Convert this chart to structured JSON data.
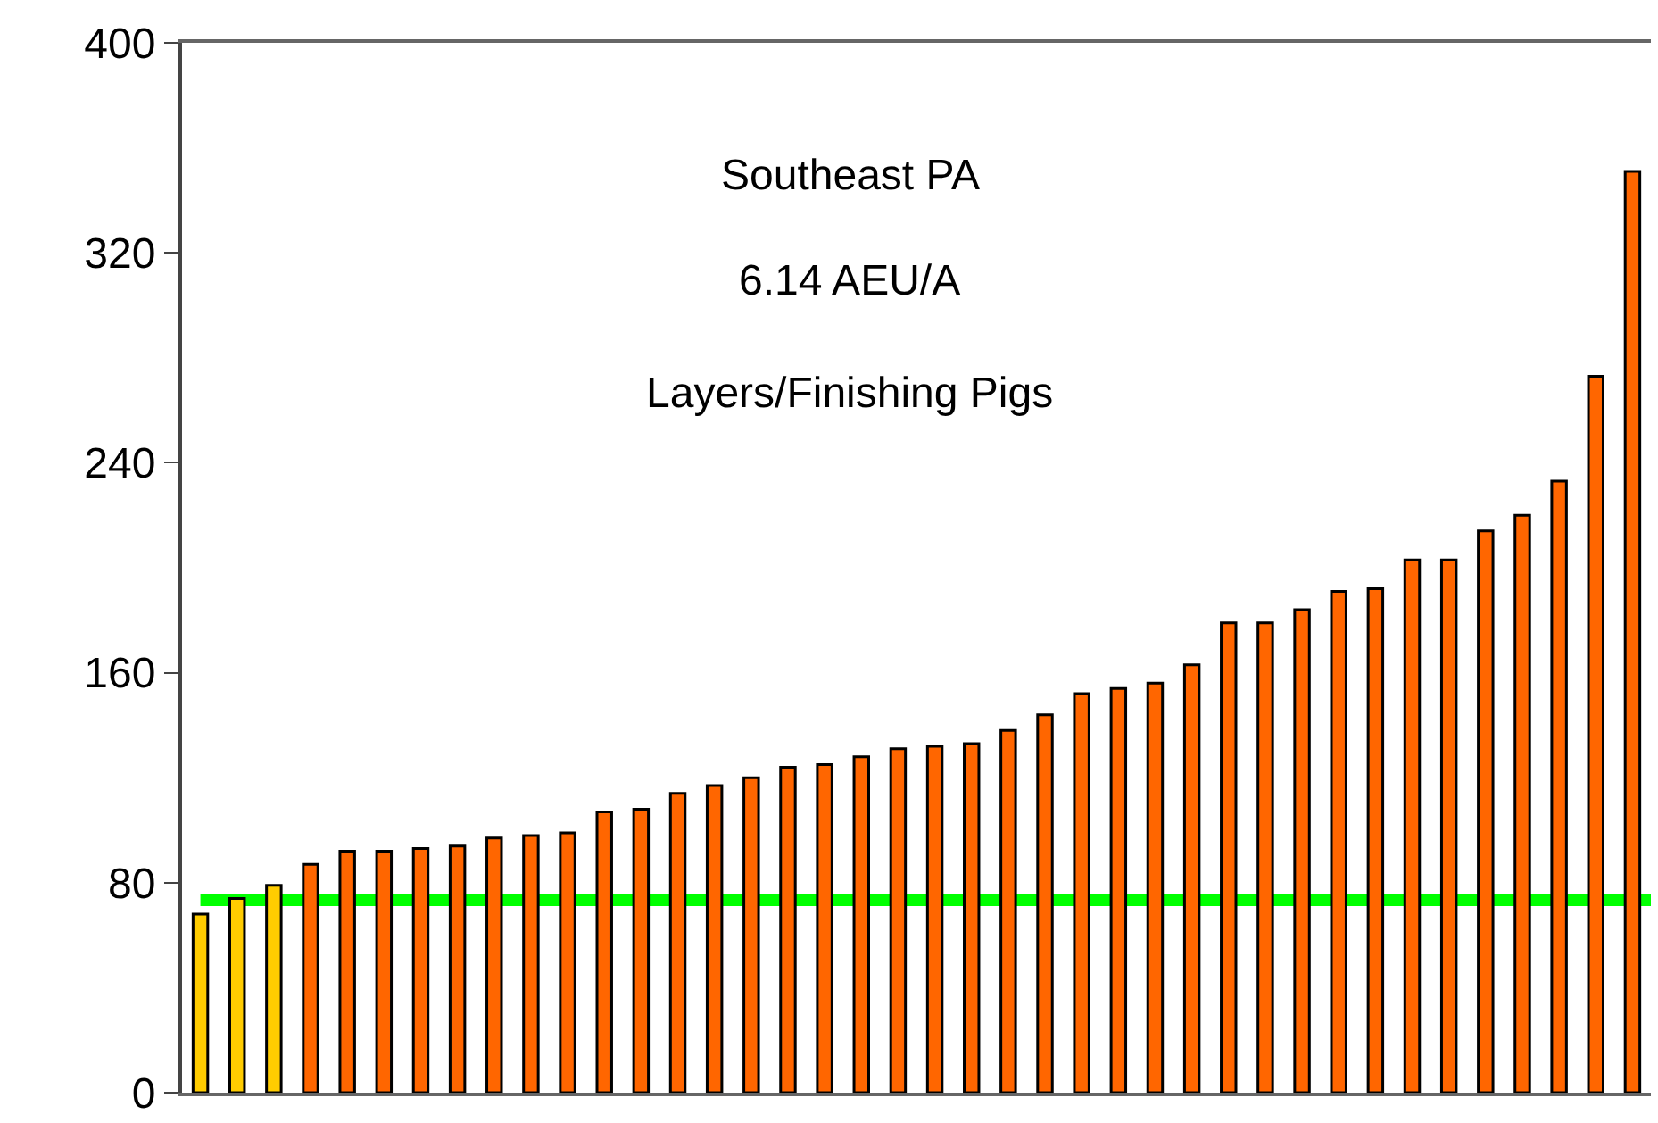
{
  "chart_data": {
    "type": "bar",
    "annotations": [
      "Southeast PA",
      "6.14 AEU/A",
      "Layers/Finishing Pigs"
    ],
    "categories": [
      null,
      null,
      null,
      null,
      null,
      null,
      null,
      null,
      null,
      null,
      null,
      null,
      null,
      null,
      null,
      null,
      null,
      null,
      null,
      null,
      null,
      null,
      null,
      null,
      null,
      null,
      null,
      null,
      null,
      null,
      null,
      null,
      null,
      null,
      null,
      null,
      null,
      null,
      null,
      null
    ],
    "values": [
      68,
      74,
      79,
      87,
      92,
      92,
      93,
      94,
      97,
      98,
      99,
      107,
      108,
      114,
      117,
      120,
      124,
      125,
      128,
      131,
      132,
      133,
      138,
      144,
      152,
      154,
      156,
      163,
      179,
      179,
      184,
      191,
      192,
      203,
      203,
      214,
      220,
      233,
      273,
      351
    ],
    "colors": [
      "#ffcc00",
      "#ffcc00",
      "#ffcc00",
      "#ff6600",
      "#ff6600",
      "#ff6600",
      "#ff6600",
      "#ff6600",
      "#ff6600",
      "#ff6600",
      "#ff6600",
      "#ff6600",
      "#ff6600",
      "#ff6600",
      "#ff6600",
      "#ff6600",
      "#ff6600",
      "#ff6600",
      "#ff6600",
      "#ff6600",
      "#ff6600",
      "#ff6600",
      "#ff6600",
      "#ff6600",
      "#ff6600",
      "#ff6600",
      "#ff6600",
      "#ff6600",
      "#ff6600",
      "#ff6600",
      "#ff6600",
      "#ff6600",
      "#ff6600",
      "#ff6600",
      "#ff6600",
      "#ff6600",
      "#ff6600",
      "#ff6600",
      "#ff6600",
      "#ff6600"
    ],
    "ylim": [
      0,
      400
    ],
    "yticks": [
      0,
      80,
      160,
      240,
      320,
      400
    ],
    "ref_lines": [
      {
        "axis": "y",
        "value": 73.5,
        "color": "#00ff00"
      }
    ],
    "legend": false
  }
}
